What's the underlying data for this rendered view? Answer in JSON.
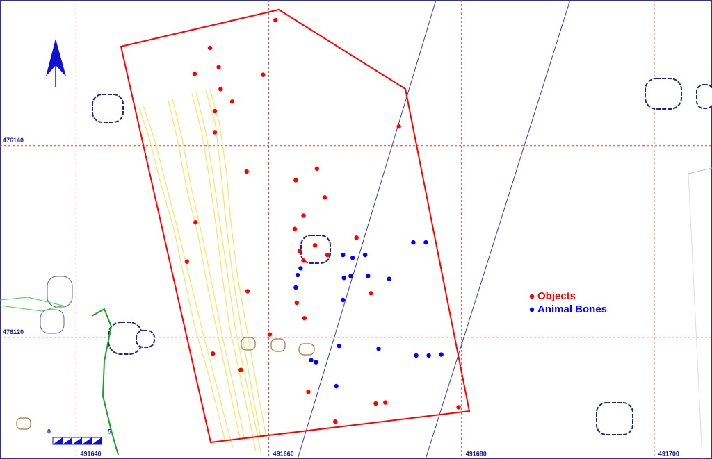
{
  "chart_data": {
    "type": "scatter",
    "xlim": [
      491632.1,
      491706.0
    ],
    "ylim": [
      476107.3,
      476155.2
    ],
    "xticks": [
      491640,
      491660,
      491680,
      491700
    ],
    "yticks": [
      476120,
      476140
    ],
    "grid": true,
    "series": [
      {
        "name": "Objects",
        "color": "#ff0000",
        "x": [
          491660.7,
          491653.9,
          491654.8,
          491652.3,
          491659.4,
          491655.0,
          491656.2,
          491654.4,
          491654.4,
          491673.5,
          491657.7,
          491665.0,
          491662.8,
          491665.8,
          491663.6,
          491652.4,
          491662.7,
          491669.1,
          491664.8,
          491663.2,
          491666.1,
          491663.6,
          491651.5,
          491657.8,
          491670.6,
          491662.9,
          491663.7,
          491660.1,
          491654.2,
          491657.1,
          491664.1,
          491671.1,
          491672.1,
          491679.7,
          491666.9
        ],
        "y": [
          476153.1,
          476150.2,
          476148.2,
          476147.5,
          476147.4,
          476145.9,
          476144.6,
          476143.6,
          476141.4,
          476142.0,
          476137.3,
          476137.6,
          476136.4,
          476134.6,
          476132.7,
          476132.0,
          476131.3,
          476130.4,
          476129.6,
          476129.0,
          476128.6,
          476128.0,
          476127.9,
          476124.8,
          476124.6,
          476123.6,
          476122.0,
          476120.3,
          476118.3,
          476116.6,
          476114.3,
          476113.1,
          476113.2,
          476112.7,
          476111.2
        ]
      },
      {
        "name": "Animal Bones",
        "color": "#0000ff",
        "x": [
          491675.0,
          491676.3,
          491670.0,
          491667.7,
          491668.7,
          491663.3,
          491663.0,
          491667.8,
          491668.5,
          491670.3,
          491672.5,
          491662.8,
          491667.7,
          491667.3,
          491671.4,
          491675.3,
          491676.6,
          491677.9,
          491664.4,
          491664.9,
          491667.0
        ],
        "y": [
          476129.9,
          476129.9,
          476128.6,
          476128.6,
          476128.3,
          476127.2,
          476126.5,
          476126.2,
          476126.4,
          476126.4,
          476126.1,
          476125.2,
          476123.9,
          476119.1,
          476118.8,
          476118.1,
          476118.1,
          476118.2,
          476117.6,
          476117.4,
          476114.9
        ]
      }
    ]
  },
  "scale_bar": {
    "labels": [
      "0",
      "5"
    ]
  }
}
